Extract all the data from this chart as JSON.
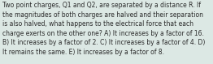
{
  "text_lines": [
    "Two point charges, Q1 and Q2, are separated by a distance R. If",
    "the magnitudes of both charges are halved and their separation",
    "is also halved, what happens to the electrical force that each",
    "charge exerts on the other one? A) It increases by a factor of 16.",
    "B) It increases by a factor of 2. C) It increases by a factor of 4. D)",
    "It remains the same. E) It increases by a factor of 8."
  ],
  "font_size": 5.5,
  "text_color": "#2a2a2a",
  "bg_color": "#dce8e4",
  "fig_width": 2.62,
  "fig_height": 0.79,
  "dpi": 100
}
